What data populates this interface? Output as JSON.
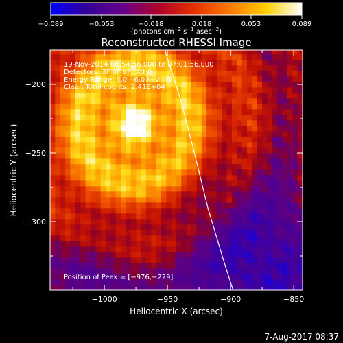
{
  "colorbar": {
    "ticks": [
      "−0.089",
      "−0.053",
      "−0.018",
      "0.018",
      "0.053",
      "0.089"
    ],
    "values": [
      -0.089,
      -0.053,
      -0.018,
      0.018,
      0.053,
      0.089
    ],
    "unit_parts": [
      "(photons cm",
      "−2",
      " s",
      "−1",
      " asec",
      "−2",
      ")"
    ],
    "colors": [
      "#0000ff",
      "#330099",
      "#66008a",
      "#b0002a",
      "#e63000",
      "#ff7a00",
      "#ffd000",
      "#ffffff"
    ]
  },
  "chart_data": {
    "type": "heatmap",
    "title": "Reconstructed RHESSI Image",
    "xlabel": "Heliocentric X (arcsec)",
    "ylabel": "Heliocentric Y (arcsec)",
    "xlim": [
      -1043,
      -843
    ],
    "ylim": [
      -350,
      -175
    ],
    "x_ticks": [
      -1000,
      -950,
      -900,
      -850
    ],
    "x_tick_labels": [
      "−1000",
      "−950",
      "−900",
      "−850"
    ],
    "y_ticks": [
      -200,
      -250,
      -300
    ],
    "y_tick_labels": [
      "−200",
      "−250",
      "−300"
    ],
    "peak": [
      -976,
      -229
    ],
    "value_range": [
      -0.089,
      0.089
    ],
    "limb_curve": [
      [
        -952,
        -175
      ],
      [
        -940,
        -210
      ],
      [
        -930,
        -245
      ],
      [
        -918,
        -290
      ],
      [
        -905,
        -330
      ],
      [
        -898,
        -350
      ]
    ]
  },
  "info": {
    "line1": "19-Nov-2014 06:54:56.000 to 07:01:56.000",
    "line2": "Detectors: 3F 6F 9F, Att 0",
    "line3": "Energy Range: 3.0 - 6.0 keV",
    "line4": "Clean     Total counts: 2.41E+04",
    "peak_label": "Position of Peak = [−976,−229]"
  },
  "footer": {
    "date": "7-Aug-2017 08:37"
  }
}
